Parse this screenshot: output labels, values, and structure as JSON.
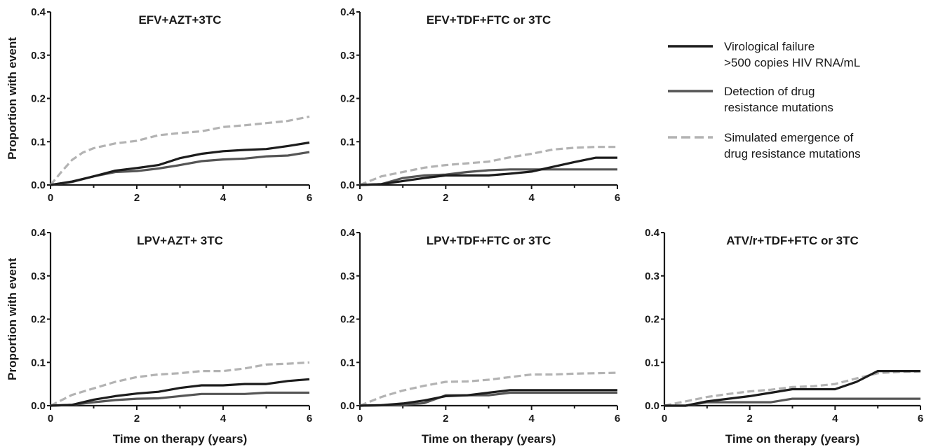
{
  "chart_data": [
    {
      "type": "line",
      "title": "EFV+AZT+3TC",
      "xlabel": "",
      "ylabel": "Proportion with event",
      "xlim": [
        0,
        6
      ],
      "ylim": [
        0,
        0.4
      ],
      "xticks": [
        "0",
        "2",
        "4",
        "6"
      ],
      "yticks": [
        "0.0",
        "0.1",
        "0.2",
        "0.3",
        "0.4"
      ],
      "series": [
        {
          "name": "Virological failure >500 copies HIV RNA/mL",
          "x": [
            0,
            0.5,
            1,
            1.5,
            2,
            2.5,
            3,
            3.5,
            4,
            4.5,
            5,
            5.5,
            6
          ],
          "values": [
            0,
            0.008,
            0.02,
            0.033,
            0.039,
            0.046,
            0.062,
            0.072,
            0.078,
            0.081,
            0.083,
            0.09,
            0.098
          ]
        },
        {
          "name": "Detection of drug resistance mutations",
          "x": [
            0,
            0.5,
            1,
            1.5,
            2,
            2.5,
            3,
            3.5,
            4,
            4.5,
            5,
            5.5,
            6
          ],
          "values": [
            0,
            0.007,
            0.02,
            0.03,
            0.032,
            0.038,
            0.046,
            0.055,
            0.059,
            0.061,
            0.066,
            0.068,
            0.076
          ]
        },
        {
          "name": "Simulated emergence of drug resistance mutations",
          "x": [
            0,
            0.25,
            0.5,
            0.75,
            1,
            1.5,
            2,
            2.5,
            3,
            3.5,
            4,
            4.5,
            5,
            5.5,
            6
          ],
          "values": [
            0,
            0.03,
            0.058,
            0.075,
            0.085,
            0.096,
            0.102,
            0.115,
            0.12,
            0.124,
            0.134,
            0.138,
            0.143,
            0.148,
            0.158
          ]
        }
      ]
    },
    {
      "type": "line",
      "title": "EFV+TDF+FTC or 3TC",
      "xlabel": "",
      "ylabel": "",
      "xlim": [
        0,
        6
      ],
      "ylim": [
        0,
        0.4
      ],
      "xticks": [
        "0",
        "2",
        "4",
        "6"
      ],
      "yticks": [
        "0.0",
        "0.1",
        "0.2",
        "0.3",
        "0.4"
      ],
      "series": [
        {
          "name": "Virological failure >500 copies HIV RNA/mL",
          "x": [
            0,
            0.5,
            1,
            1.5,
            2,
            2.5,
            3,
            3.5,
            4,
            4.5,
            5,
            5.5,
            6
          ],
          "values": [
            0,
            0.002,
            0.009,
            0.016,
            0.022,
            0.022,
            0.022,
            0.026,
            0.031,
            0.042,
            0.053,
            0.063,
            0.063
          ]
        },
        {
          "name": "Detection of drug resistance mutations",
          "x": [
            0,
            0.5,
            1,
            1.5,
            2,
            2.5,
            3,
            3.5,
            4,
            4.5,
            5,
            5.5,
            6
          ],
          "values": [
            0,
            0.002,
            0.016,
            0.022,
            0.024,
            0.03,
            0.034,
            0.036,
            0.036,
            0.036,
            0.036,
            0.036,
            0.036
          ]
        },
        {
          "name": "Simulated emergence of drug resistance mutations",
          "x": [
            0,
            0.5,
            1,
            1.5,
            2,
            2.5,
            3,
            3.5,
            4,
            4.5,
            5,
            5.5,
            6
          ],
          "values": [
            0,
            0.02,
            0.03,
            0.04,
            0.046,
            0.05,
            0.054,
            0.064,
            0.072,
            0.082,
            0.086,
            0.088,
            0.088
          ]
        }
      ]
    },
    {
      "type": "line",
      "title": "LPV+AZT+ 3TC",
      "xlabel": "Time on therapy (years)",
      "ylabel": "Proportion with event",
      "xlim": [
        0,
        6
      ],
      "ylim": [
        0,
        0.4
      ],
      "xticks": [
        "0",
        "2",
        "4",
        "6"
      ],
      "yticks": [
        "0.0",
        "0.1",
        "0.2",
        "0.3",
        "0.4"
      ],
      "series": [
        {
          "name": "Virological failure >500 copies HIV RNA/mL",
          "x": [
            0,
            0.5,
            1,
            1.5,
            2,
            2.5,
            3,
            3.5,
            4,
            4.5,
            5,
            5.5,
            6
          ],
          "values": [
            0,
            0.002,
            0.014,
            0.022,
            0.028,
            0.032,
            0.041,
            0.047,
            0.047,
            0.05,
            0.05,
            0.057,
            0.061
          ]
        },
        {
          "name": "Detection of drug resistance mutations",
          "x": [
            0,
            0.5,
            1,
            1.5,
            2,
            2.5,
            3,
            3.5,
            4,
            4.5,
            5,
            5.5,
            6
          ],
          "values": [
            0,
            0.002,
            0.008,
            0.013,
            0.016,
            0.017,
            0.022,
            0.027,
            0.027,
            0.027,
            0.03,
            0.03,
            0.03
          ]
        },
        {
          "name": "Simulated emergence of drug resistance mutations",
          "x": [
            0,
            0.5,
            1,
            1.5,
            2,
            2.5,
            3,
            3.5,
            4,
            4.5,
            5,
            5.5,
            6
          ],
          "values": [
            0,
            0.025,
            0.04,
            0.055,
            0.066,
            0.072,
            0.075,
            0.08,
            0.08,
            0.086,
            0.095,
            0.097,
            0.1
          ]
        }
      ]
    },
    {
      "type": "line",
      "title": "LPV+TDF+FTC or 3TC",
      "xlabel": "Time on therapy (years)",
      "ylabel": "",
      "xlim": [
        0,
        6
      ],
      "ylim": [
        0,
        0.4
      ],
      "xticks": [
        "0",
        "2",
        "4",
        "6"
      ],
      "yticks": [
        "0.0",
        "0.1",
        "0.2",
        "0.3",
        "0.4"
      ],
      "series": [
        {
          "name": "Virological failure >500 copies HIV RNA/mL",
          "x": [
            0,
            0.5,
            1,
            1.5,
            2,
            2.5,
            3,
            3.5,
            4,
            4.5,
            5,
            5.5,
            6
          ],
          "values": [
            0,
            0.001,
            0.005,
            0.012,
            0.022,
            0.024,
            0.03,
            0.036,
            0.036,
            0.036,
            0.036,
            0.036,
            0.036
          ]
        },
        {
          "name": "Detection of drug resistance mutations",
          "x": [
            0,
            0.5,
            1,
            1.5,
            2,
            2.5,
            3,
            3.5,
            4,
            4.5,
            5,
            5.5,
            6
          ],
          "values": [
            0,
            0.001,
            0.002,
            0.006,
            0.024,
            0.024,
            0.024,
            0.03,
            0.03,
            0.03,
            0.03,
            0.03,
            0.03
          ]
        },
        {
          "name": "Simulated emergence of drug resistance mutations",
          "x": [
            0,
            0.5,
            1,
            1.5,
            2,
            2.5,
            3,
            3.5,
            4,
            4.5,
            5,
            5.5,
            6
          ],
          "values": [
            0,
            0.02,
            0.035,
            0.046,
            0.055,
            0.056,
            0.06,
            0.066,
            0.072,
            0.072,
            0.074,
            0.075,
            0.076
          ]
        }
      ]
    },
    {
      "type": "line",
      "title": "ATV/r+TDF+FTC or 3TC",
      "xlabel": "Time on therapy (years)",
      "ylabel": "",
      "xlim": [
        0,
        6
      ],
      "ylim": [
        0,
        0.4
      ],
      "xticks": [
        "0",
        "2",
        "4",
        "6"
      ],
      "yticks": [
        "0.0",
        "0.1",
        "0.2",
        "0.3",
        "0.4"
      ],
      "series": [
        {
          "name": "Virological failure >500 copies HIV RNA/mL",
          "x": [
            0,
            0.5,
            1,
            1.5,
            2,
            2.5,
            3,
            3.5,
            4,
            4.5,
            5,
            5.5,
            6
          ],
          "values": [
            0,
            0,
            0.01,
            0.016,
            0.022,
            0.03,
            0.038,
            0.038,
            0.038,
            0.055,
            0.08,
            0.08,
            0.08
          ]
        },
        {
          "name": "Detection of drug resistance mutations",
          "x": [
            0,
            0.5,
            1,
            1.5,
            2,
            2.5,
            3,
            3.5,
            4,
            4.5,
            5,
            5.5,
            6
          ],
          "values": [
            0,
            0,
            0.008,
            0.008,
            0.008,
            0.008,
            0.016,
            0.016,
            0.016,
            0.016,
            0.016,
            0.016,
            0.016
          ]
        },
        {
          "name": "Simulated emergence of drug resistance mutations",
          "x": [
            0,
            0.5,
            1,
            1.5,
            2,
            2.5,
            3,
            3.5,
            4,
            4.5,
            5,
            5.5,
            6
          ],
          "values": [
            0,
            0.01,
            0.02,
            0.027,
            0.033,
            0.037,
            0.043,
            0.045,
            0.05,
            0.063,
            0.075,
            0.078,
            0.079
          ]
        }
      ]
    }
  ],
  "legend": {
    "placement": "top-right",
    "items": [
      {
        "label_lines": [
          "Virological failure",
          ">500 copies HIV RNA/mL"
        ],
        "color": "#1c1c1c",
        "dash": "solid"
      },
      {
        "label_lines": [
          "Detection of drug",
          "resistance mutations"
        ],
        "color": "#555555",
        "dash": "solid"
      },
      {
        "label_lines": [
          "Simulated emergence of",
          "drug resistance mutations"
        ],
        "color": "#b3b3b3",
        "dash": "dashed"
      }
    ]
  },
  "colors": {
    "virological_failure": "#1c1c1c",
    "detection": "#555555",
    "simulated": "#b3b3b3",
    "axis": "#1a1a1a"
  }
}
